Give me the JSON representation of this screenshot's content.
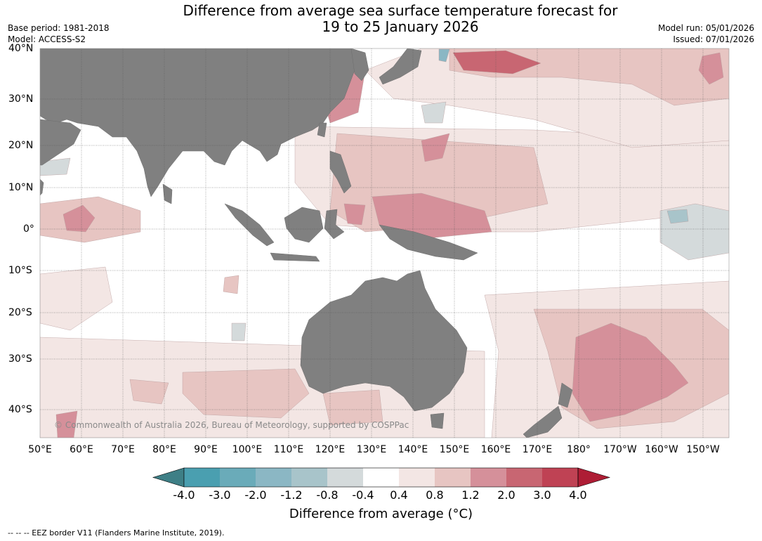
{
  "header": {
    "title_line1": "Difference from average sea surface temperature forecast for",
    "title_line2": "19 to 25 January 2026",
    "base_period": "Base period: 1981-2018",
    "model": "Model: ACCESS-S2",
    "model_run": "Model run: 05/01/2026",
    "issued": "Issued: 07/01/2026"
  },
  "map": {
    "copyright": "© Commonwealth of Australia 2026, Bureau of Meteorology, supported by COSPPac",
    "lat_labels": [
      "40°N",
      "30°N",
      "20°N",
      "10°N",
      "0°",
      "10°S",
      "20°S",
      "30°S",
      "40°S"
    ],
    "lon_labels": [
      "50°E",
      "60°E",
      "70°E",
      "80°E",
      "90°E",
      "100°E",
      "110°E",
      "120°E",
      "130°E",
      "140°E",
      "150°E",
      "160°E",
      "170°E",
      "180°",
      "170°W",
      "160°W",
      "150°W"
    ],
    "land_color": "#808080",
    "ocean_color": "#ffffff"
  },
  "colorbar": {
    "title": "Difference from average (°C)",
    "ticks": [
      "-4.0",
      "-3.0",
      "-2.0",
      "-1.2",
      "-0.8",
      "-0.4",
      "0.4",
      "0.8",
      "1.2",
      "2.0",
      "3.0",
      "4.0"
    ],
    "colors": [
      "#3e7f86",
      "#4a9fb0",
      "#6aabb9",
      "#8bb7c4",
      "#a8c4ca",
      "#d4dadb",
      "#ffffff",
      "#f3e6e4",
      "#e7c5c2",
      "#d5909a",
      "#c86672",
      "#bf4254",
      "#ae1d35"
    ]
  },
  "footnote": "--  --  -- EEZ border V11 (Flanders Marine Institute, 2019)."
}
